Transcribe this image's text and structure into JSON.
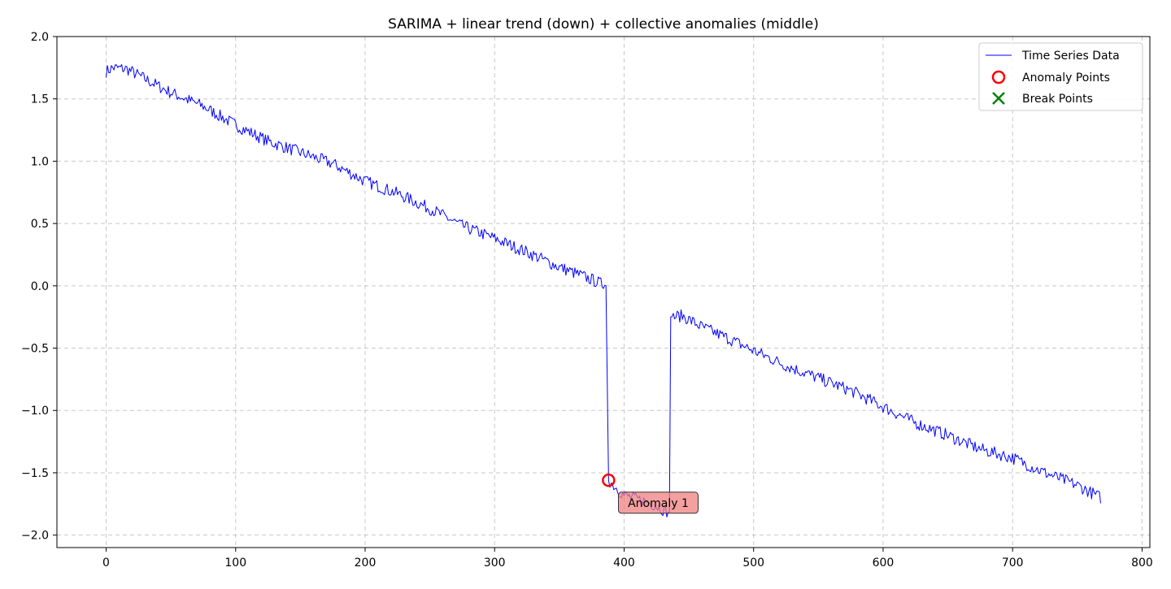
{
  "chart_data": {
    "type": "line",
    "title": "SARIMA + linear trend (down) + collective anomalies (middle)",
    "xlabel": "",
    "ylabel": "",
    "xlim": [
      -38,
      806
    ],
    "ylim": [
      -2.1,
      2.0
    ],
    "xticks": [
      0,
      100,
      200,
      300,
      400,
      500,
      600,
      700,
      800
    ],
    "yticks": [
      2.0,
      1.5,
      1.0,
      0.5,
      0.0,
      -0.5,
      -1.0,
      -1.5,
      -2.0
    ],
    "xtick_labels": [
      "0",
      "100",
      "200",
      "300",
      "400",
      "500",
      "600",
      "700",
      "800"
    ],
    "ytick_labels": [
      "2.0",
      "1.5",
      "1.0",
      "0.5",
      "0.0",
      "−0.5",
      "−1.0",
      "−1.5",
      "−2.0"
    ],
    "grid": true,
    "legend_position": "top-right",
    "legend": [
      {
        "label": "Time Series Data",
        "marker": "line",
        "color": "#0000ff"
      },
      {
        "label": "Anomaly Points",
        "marker": "circle",
        "color": "#ff0000"
      },
      {
        "label": "Break Points",
        "marker": "x",
        "color": "#008000"
      }
    ],
    "series": [
      {
        "name": "Time Series Data",
        "color": "#0000ff",
        "x_start": 0,
        "x_step": 1,
        "keypoints": [
          [
            0,
            1.72
          ],
          [
            5,
            1.75
          ],
          [
            16,
            1.74
          ],
          [
            30,
            1.66
          ],
          [
            50,
            1.55
          ],
          [
            75,
            1.44
          ],
          [
            100,
            1.29
          ],
          [
            125,
            1.16
          ],
          [
            150,
            1.07
          ],
          [
            175,
            0.98
          ],
          [
            200,
            0.84
          ],
          [
            225,
            0.74
          ],
          [
            250,
            0.62
          ],
          [
            275,
            0.48
          ],
          [
            300,
            0.38
          ],
          [
            325,
            0.27
          ],
          [
            350,
            0.15
          ],
          [
            375,
            0.05
          ],
          [
            386,
            0.0
          ],
          [
            388,
            -1.56
          ],
          [
            400,
            -1.68
          ],
          [
            420,
            -1.74
          ],
          [
            435,
            -1.82
          ],
          [
            436,
            -0.25
          ],
          [
            445,
            -0.24
          ],
          [
            460,
            -0.33
          ],
          [
            480,
            -0.42
          ],
          [
            500,
            -0.52
          ],
          [
            525,
            -0.64
          ],
          [
            550,
            -0.74
          ],
          [
            575,
            -0.84
          ],
          [
            600,
            -0.97
          ],
          [
            625,
            -1.1
          ],
          [
            650,
            -1.2
          ],
          [
            675,
            -1.31
          ],
          [
            700,
            -1.38
          ],
          [
            725,
            -1.5
          ],
          [
            750,
            -1.6
          ],
          [
            768,
            -1.7
          ]
        ],
        "noise_amplitude": 0.05
      }
    ],
    "anomaly_points": [
      {
        "x": 388,
        "y": -1.56
      }
    ],
    "break_points": [],
    "annotations": [
      {
        "text": "Anomaly 1",
        "x": 400,
        "y": -1.74
      }
    ]
  }
}
